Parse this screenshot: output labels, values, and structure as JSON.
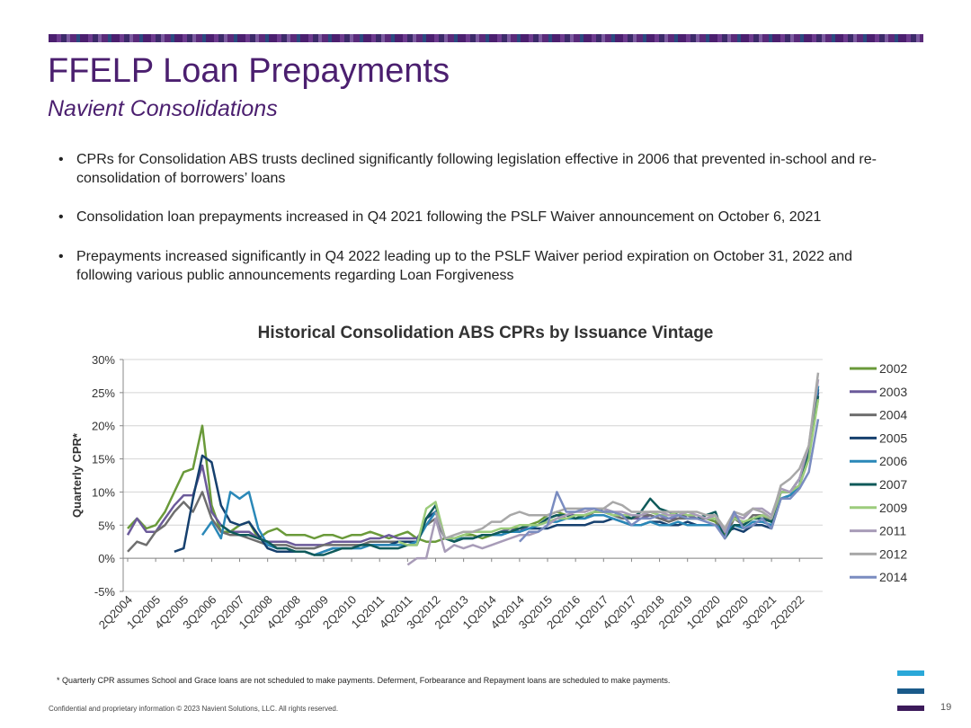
{
  "header": {
    "title": "FFELP Loan Prepayments",
    "subtitle": "Navient Consolidations"
  },
  "bullets": [
    "CPRs for Consolidation ABS trusts declined significantly following legislation effective in 2006 that prevented in-school and re-consolidation of borrowers’ loans",
    "Consolidation loan prepayments increased in Q4 2021 following the PSLF Waiver announcement on October 6, 2021",
    "Prepayments increased significantly in Q4 2022 leading up to the PSLF Waiver period expiration on October 31, 2022 and following various public announcements regarding Loan Forgiveness"
  ],
  "chart_data": {
    "type": "line",
    "title": "Historical Consolidation ABS CPRs by Issuance Vintage",
    "y_label": "Quarterly CPR*",
    "categories": [
      "2Q2004",
      null,
      null,
      "1Q2005",
      null,
      null,
      "4Q2005",
      null,
      null,
      "3Q2006",
      null,
      null,
      "2Q2007",
      null,
      null,
      "1Q2008",
      null,
      null,
      "4Q2008",
      null,
      null,
      "3Q2009",
      null,
      null,
      "2Q2010",
      null,
      null,
      "1Q2011",
      null,
      null,
      "4Q2011",
      null,
      null,
      "3Q2012",
      null,
      null,
      "2Q2013",
      null,
      null,
      "1Q2014",
      null,
      null,
      "4Q2014",
      null,
      null,
      "3Q2015",
      null,
      null,
      "2Q2016",
      null,
      null,
      "1Q2017",
      null,
      null,
      "4Q2017",
      null,
      null,
      "3Q2018",
      null,
      null,
      "2Q2019",
      null,
      null,
      "1Q2020",
      null,
      null,
      "4Q2020",
      null,
      null,
      "3Q2021",
      null,
      null,
      "2Q2022",
      null,
      null
    ],
    "ylim": [
      -5,
      30
    ],
    "yticks": [
      {
        "value": -5,
        "label": "-5%"
      },
      {
        "value": 0,
        "label": "0%"
      },
      {
        "value": 5,
        "label": "5%"
      },
      {
        "value": 10,
        "label": "10%"
      },
      {
        "value": 15,
        "label": "15%"
      },
      {
        "value": 20,
        "label": "20%"
      },
      {
        "value": 25,
        "label": "25%"
      },
      {
        "value": 30,
        "label": "30%"
      }
    ],
    "grid": true,
    "legend": "right",
    "series": [
      {
        "name": "2002",
        "color": "#6a9a3a",
        "values": [
          4.5,
          6,
          4.5,
          5,
          7,
          10,
          13,
          13.5,
          20,
          8,
          4,
          4,
          5,
          5.5,
          3,
          4,
          4.5,
          3.5,
          3.5,
          3.5,
          3,
          3.5,
          3.5,
          3,
          3.5,
          3.5,
          4,
          3.5,
          3,
          3.5,
          4,
          3,
          2.5,
          2.5,
          3,
          3,
          3.5,
          3.5,
          3,
          3.5,
          4,
          4.5,
          4.5,
          5,
          5.5,
          6.5,
          7,
          6.5,
          6,
          6.5,
          7,
          7,
          7,
          6.5,
          6,
          6.5,
          7,
          6.5,
          6,
          6.5,
          6.5,
          6,
          6,
          5.5,
          3.5,
          6.5,
          5,
          6,
          6,
          5.5,
          10,
          10,
          12,
          16,
          24
        ]
      },
      {
        "name": "2003",
        "color": "#6b5a9a",
        "values": [
          3.5,
          6,
          4,
          4,
          6,
          8,
          9.5,
          9.5,
          14,
          7,
          5,
          4,
          4,
          4,
          3,
          2.5,
          2.5,
          2.5,
          2,
          2,
          2,
          2,
          2.5,
          2.5,
          2.5,
          2.5,
          3,
          3,
          3.5,
          3,
          3,
          3,
          5,
          7,
          3,
          3,
          3,
          3,
          3.5,
          3.5,
          4,
          4.5,
          4,
          5,
          5,
          6,
          6.5,
          6.5,
          6.5,
          6.5,
          7,
          7,
          6.5,
          6.5,
          6,
          6,
          6.5,
          6,
          6,
          6,
          6.5,
          6,
          6,
          6,
          3,
          6.5,
          6,
          7.5,
          7,
          6,
          10,
          10,
          11,
          16,
          25
        ]
      },
      {
        "name": "2004",
        "color": "#6e6e6e",
        "values": [
          1,
          2.5,
          2,
          4,
          5,
          7,
          8.5,
          7,
          10,
          6,
          4,
          3.5,
          3.5,
          3,
          2.5,
          2,
          2,
          2,
          1.5,
          1.5,
          1.5,
          2,
          2,
          2,
          2,
          2,
          2.5,
          2.5,
          2.5,
          2.5,
          2.5,
          2.5,
          5,
          6,
          3,
          3,
          3,
          3,
          3.5,
          3.5,
          4,
          4,
          4.5,
          5,
          5,
          6,
          6.5,
          6,
          6,
          6,
          7,
          7,
          6.5,
          6,
          6,
          6.5,
          6.5,
          6,
          5.5,
          6,
          6,
          6,
          6,
          6,
          3,
          6,
          5,
          6.5,
          6.5,
          5.5,
          10,
          10,
          11,
          15,
          26
        ]
      },
      {
        "name": "2005",
        "color": "#16406e",
        "values": [
          null,
          null,
          null,
          null,
          null,
          1,
          1.5,
          9,
          15.5,
          14.5,
          8,
          5.5,
          5,
          5.5,
          3.5,
          1.5,
          1,
          1,
          1,
          1,
          0.5,
          1,
          1.5,
          1.5,
          1.5,
          2,
          2,
          2,
          2,
          2.5,
          2.5,
          2.5,
          6,
          7,
          3,
          2.5,
          3,
          3,
          3.5,
          3.5,
          3.5,
          4,
          4,
          4.5,
          4.5,
          4.5,
          5,
          5,
          5,
          5,
          5.5,
          5.5,
          6,
          5.5,
          5,
          5,
          5.5,
          5.5,
          5,
          5,
          5.5,
          5,
          5,
          5,
          4,
          4.5,
          4,
          5,
          5,
          4.5,
          9,
          9.5,
          11,
          16,
          25.5
        ]
      },
      {
        "name": "2006",
        "color": "#2a88b8",
        "values": [
          null,
          null,
          null,
          null,
          null,
          null,
          null,
          null,
          3.5,
          5.5,
          3,
          10,
          9,
          10,
          4.5,
          2,
          1.5,
          1.5,
          1,
          1,
          0.5,
          1,
          1.5,
          1.5,
          1.5,
          1.5,
          2,
          2,
          2,
          2,
          2,
          2.5,
          5,
          7,
          3,
          3,
          3,
          3,
          3.5,
          3.5,
          3.5,
          4,
          4,
          4.5,
          5,
          5.5,
          5.5,
          6,
          6,
          6,
          6.5,
          6.5,
          6,
          5.5,
          5,
          5,
          5.5,
          5,
          5,
          5.5,
          5,
          5,
          5,
          5,
          4,
          5,
          4.5,
          5.5,
          5.5,
          5,
          9,
          9.5,
          11,
          16,
          26
        ]
      },
      {
        "name": "2007",
        "color": "#0f5a5a",
        "values": [
          null,
          null,
          null,
          null,
          null,
          null,
          null,
          null,
          null,
          null,
          5,
          4,
          3.5,
          3.5,
          3,
          2.5,
          1.5,
          1.5,
          1,
          1,
          0.5,
          0.5,
          1,
          1.5,
          1.5,
          2,
          2,
          1.5,
          1.5,
          1.5,
          2,
          2,
          6,
          8,
          3,
          2.5,
          3,
          3,
          3.5,
          3.5,
          4,
          4,
          4.5,
          5,
          5,
          6,
          6.5,
          6.5,
          6,
          6.5,
          7,
          7.5,
          7,
          6.5,
          6,
          7,
          9,
          7.5,
          7,
          6.5,
          6,
          6,
          6.5,
          7,
          3,
          5,
          5,
          6,
          6,
          5.5,
          10,
          10,
          12,
          16,
          24.5
        ]
      },
      {
        "name": "2009",
        "color": "#9ccc7c",
        "values": [
          null,
          null,
          null,
          null,
          null,
          null,
          null,
          null,
          null,
          null,
          null,
          null,
          null,
          null,
          null,
          null,
          null,
          null,
          null,
          null,
          null,
          null,
          null,
          null,
          null,
          null,
          null,
          null,
          null,
          2.5,
          2,
          2,
          7.5,
          8.5,
          3,
          3,
          3.5,
          4,
          4,
          4,
          4.5,
          4.5,
          5,
          5,
          5,
          5.5,
          6,
          6,
          6.5,
          6.5,
          7,
          7,
          6.5,
          6.5,
          6.5,
          6.5,
          7,
          6.5,
          6.5,
          7,
          6.5,
          6.5,
          6,
          6,
          4.5,
          6,
          5.5,
          6,
          6.5,
          6,
          10,
          10,
          11,
          15,
          24
        ]
      },
      {
        "name": "2011",
        "color": "#a89cb8",
        "values": [
          null,
          null,
          null,
          null,
          null,
          null,
          null,
          null,
          null,
          null,
          null,
          null,
          null,
          null,
          null,
          null,
          null,
          null,
          null,
          null,
          null,
          null,
          null,
          null,
          null,
          null,
          null,
          null,
          null,
          null,
          -1,
          0,
          0,
          6,
          1,
          2,
          1.5,
          2,
          1.5,
          2,
          2.5,
          3,
          3.5,
          3.5,
          4,
          5,
          6,
          6.5,
          7,
          7,
          7.5,
          7.5,
          7,
          7,
          6.5,
          6.5,
          7,
          7,
          6.5,
          6.5,
          7,
          6.5,
          6,
          6.5,
          4,
          6.5,
          6,
          7.5,
          7.5,
          6.5,
          10.5,
          10,
          12,
          17,
          27
        ]
      },
      {
        "name": "2012",
        "color": "#a8a8a8",
        "values": [
          null,
          null,
          null,
          null,
          null,
          null,
          null,
          null,
          null,
          null,
          null,
          null,
          null,
          null,
          null,
          null,
          null,
          null,
          null,
          null,
          null,
          null,
          null,
          null,
          null,
          null,
          null,
          null,
          null,
          null,
          null,
          null,
          null,
          7,
          3,
          3.5,
          4,
          4,
          4.5,
          5.5,
          5.5,
          6.5,
          7,
          6.5,
          6.5,
          6.5,
          7,
          7.5,
          7.5,
          7.5,
          7.5,
          7.5,
          8.5,
          8,
          7,
          7,
          7,
          7,
          7,
          7,
          7,
          7,
          6.5,
          6.5,
          4.5,
          7,
          6.5,
          7.5,
          7,
          6,
          11,
          12,
          13.5,
          17,
          28
        ]
      },
      {
        "name": "2014",
        "color": "#7a8cc0",
        "values": [
          null,
          null,
          null,
          null,
          null,
          null,
          null,
          null,
          null,
          null,
          null,
          null,
          null,
          null,
          null,
          null,
          null,
          null,
          null,
          null,
          null,
          null,
          null,
          null,
          null,
          null,
          null,
          null,
          null,
          null,
          null,
          null,
          null,
          null,
          null,
          null,
          null,
          null,
          null,
          null,
          null,
          null,
          2.5,
          4,
          4,
          5,
          10,
          7,
          7,
          7.5,
          7.5,
          7,
          7,
          6.5,
          5,
          6,
          6,
          6.5,
          6,
          6.5,
          6,
          6,
          5.5,
          5,
          3,
          7,
          4.5,
          5,
          6,
          4.5,
          9,
          9,
          10.5,
          13,
          21
        ]
      }
    ]
  },
  "footnote": "* Quarterly CPR assumes School and Grace loans are not scheduled to make payments. Deferment, Forbearance and Repayment loans are scheduled to make payments.",
  "footer": "Confidential and proprietary information © 2023 Navient Solutions, LLC. All rights reserved.",
  "page_number": "19"
}
